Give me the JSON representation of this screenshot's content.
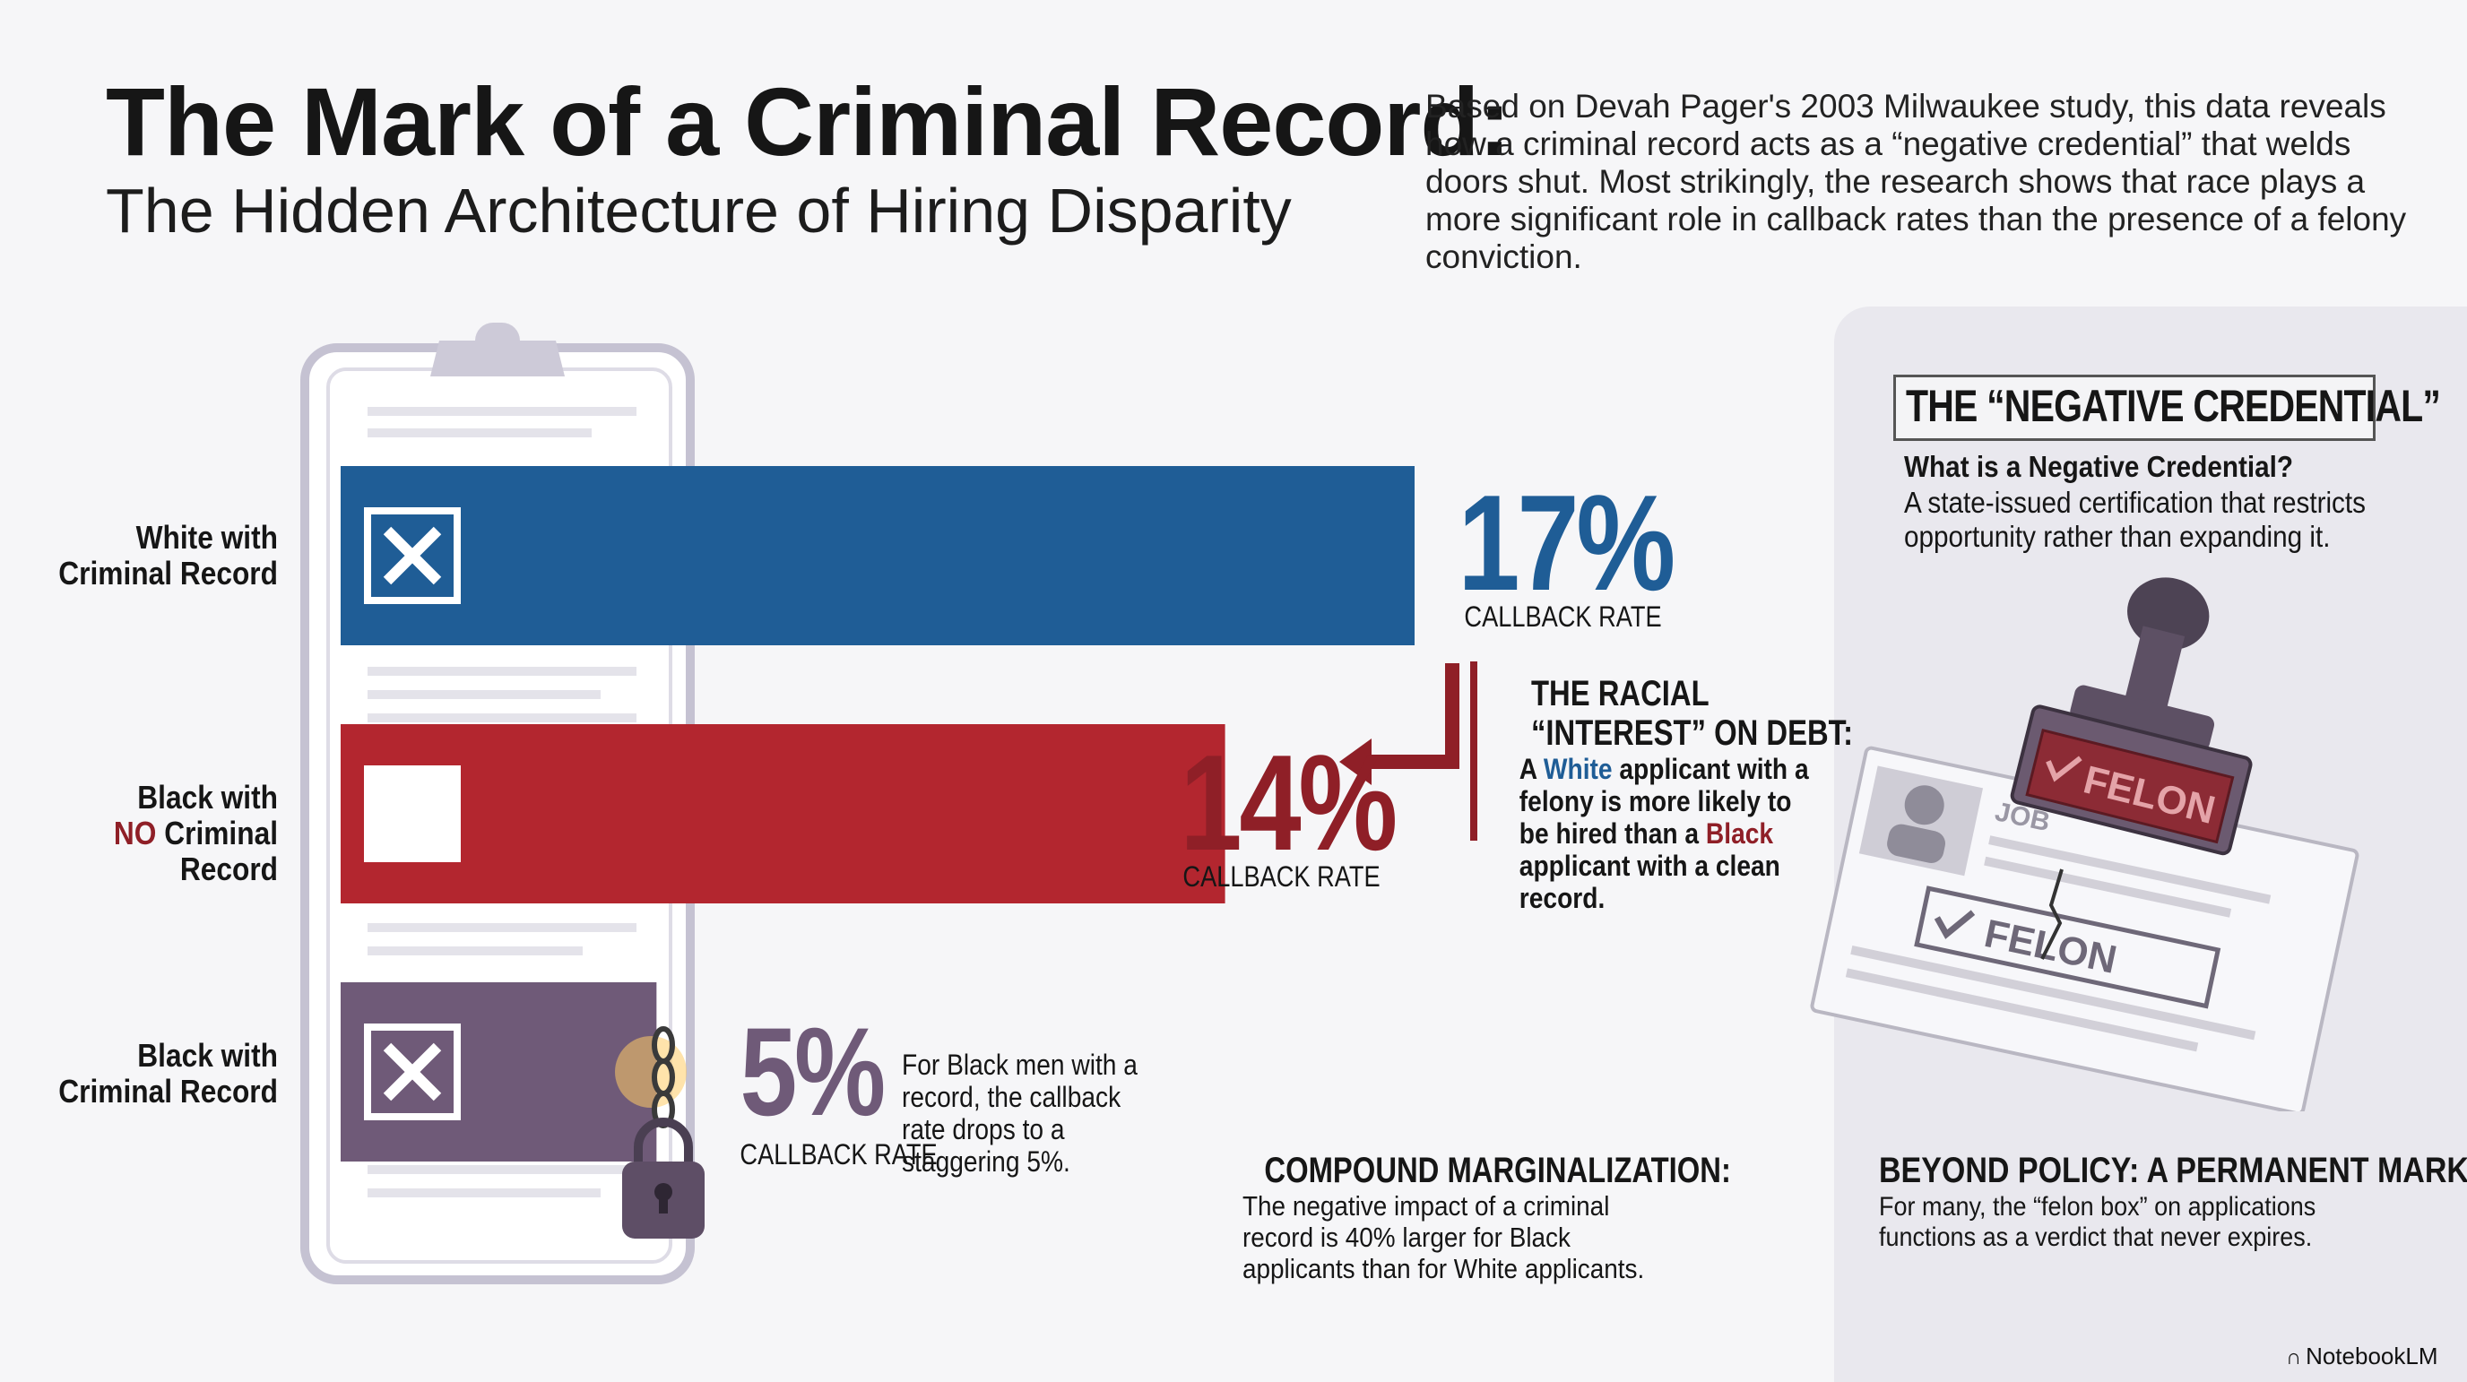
{
  "header": {
    "title": "The Mark of a Criminal Record:",
    "subtitle": "The Hidden Architecture of Hiring Disparity",
    "intro": "Based on Devah Pager's 2003 Milwaukee study, this data reveals how a criminal record acts as a “negative credential” that welds doors shut. Most strikingly, the research shows that race plays a more significant role in callback rates than the presence of a felony conviction."
  },
  "chart_data": {
    "type": "bar",
    "orientation": "horizontal",
    "categories": [
      "White with Criminal Record",
      "Black with NO Criminal Record",
      "Black with Criminal Record"
    ],
    "values": [
      17,
      14,
      5
    ],
    "unit": "%",
    "value_labels": [
      "17%",
      "14%",
      "5%"
    ],
    "value_caption": "CALLBACK RATE",
    "colors": [
      "#1f5d96",
      "#b3262f",
      "#6f5a78"
    ],
    "xlim": [
      0,
      17
    ],
    "grid": false,
    "legend": "none"
  },
  "rows": [
    {
      "label_line1": "White with",
      "label_line2_prefix": "",
      "label_line2": "Criminal Record"
    },
    {
      "label_line1": "Black with",
      "label_line2_prefix": "NO",
      "label_line2": " Criminal Record"
    },
    {
      "label_line1": "Black with",
      "label_line2_prefix": "",
      "label_line2": "Criminal Record"
    }
  ],
  "annotations": {
    "racial_title_1": "THE RACIAL",
    "racial_title_2": "“INTEREST” ON DEBT:",
    "racial_text_a": "A ",
    "racial_white": "White",
    "racial_text_b": " applicant with a felony is more likely to be hired than a ",
    "racial_black": "Black",
    "racial_text_c": " applicant with a clean record.",
    "drop_note": "For Black men with a record, the callback rate drops to a staggering 5%.",
    "compound_title": "COMPOUND MARGINALIZATION:",
    "compound_text": "The negative impact of a criminal record is 40% larger for Black applicants than for White applicants."
  },
  "panel": {
    "heading": "THE “NEGATIVE CREDENTIAL”",
    "question": "What is a Negative Credential?",
    "answer": "A state-issued certification that restricts opportunity rather than expanding it.",
    "stamp_text": "FELON",
    "stamp_print_text": "FELON",
    "doc_text": "JOB",
    "beyond_title": "BEYOND POLICY: A PERMANENT MARK.",
    "beyond_text": "For many, the “felon box” on applications functions as a verdict that never expires."
  },
  "brand": "NotebookLM",
  "colors": {
    "white_accent": "#1f5d96",
    "black_accent": "#8f1f27",
    "text": "#161616"
  }
}
